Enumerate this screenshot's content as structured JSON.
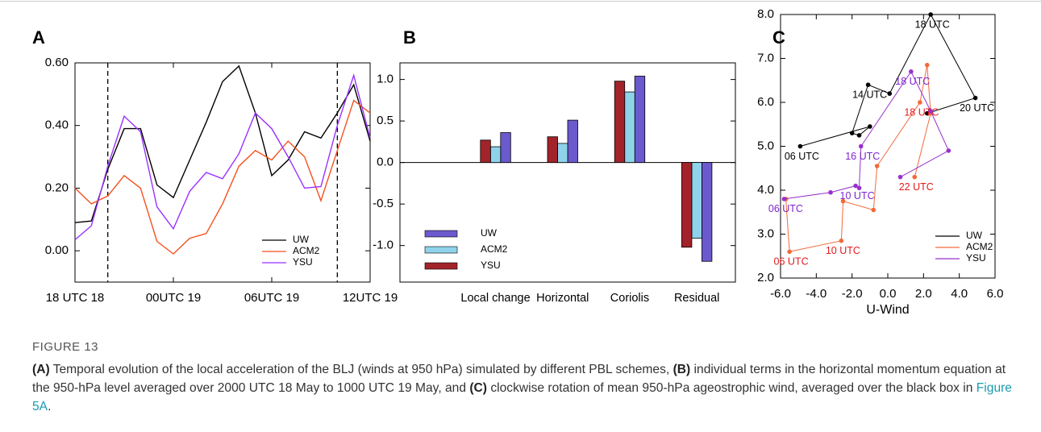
{
  "chart_data": [
    {
      "panel": "A",
      "type": "line",
      "x": [
        0,
        1,
        2,
        3,
        4,
        5,
        6,
        7,
        8,
        9,
        10,
        11,
        12,
        13,
        14,
        15,
        16,
        17,
        18
      ],
      "xlim": [
        0,
        18
      ],
      "xticks": [
        {
          "value": 0,
          "label": "18 UTC 18"
        },
        {
          "value": 6,
          "label": "00UTC 19"
        },
        {
          "value": 12,
          "label": "06UTC 19"
        },
        {
          "value": 18,
          "label": "12UTC 19"
        }
      ],
      "ylim": [
        -0.1,
        0.6
      ],
      "yticks": [
        {
          "value": 0,
          "label": "0.00"
        },
        {
          "value": 0.2,
          "label": "0.20"
        },
        {
          "value": 0.4,
          "label": "0.40"
        },
        {
          "value": 0.6,
          "label": "0.60"
        }
      ],
      "vlines": [
        2,
        16
      ],
      "legend": "lower right",
      "series": [
        {
          "name": "UW",
          "color": "#000000",
          "values": [
            0.09,
            0.095,
            0.26,
            0.39,
            0.39,
            0.21,
            0.17,
            0.29,
            0.41,
            0.54,
            0.59,
            0.44,
            0.24,
            0.29,
            0.38,
            0.36,
            0.44,
            0.53,
            0.35
          ]
        },
        {
          "name": "ACM2",
          "color": "#f4511e",
          "values": [
            0.2,
            0.15,
            0.175,
            0.24,
            0.2,
            0.03,
            -0.01,
            0.04,
            0.055,
            0.15,
            0.27,
            0.32,
            0.29,
            0.35,
            0.3,
            0.16,
            0.32,
            0.48,
            0.44
          ]
        },
        {
          "name": "YSU",
          "color": "#9b30ff",
          "values": [
            0.035,
            0.08,
            0.27,
            0.43,
            0.38,
            0.14,
            0.07,
            0.19,
            0.25,
            0.23,
            0.31,
            0.44,
            0.39,
            0.3,
            0.2,
            0.205,
            0.4,
            0.56,
            0.36
          ]
        }
      ]
    },
    {
      "panel": "B",
      "type": "bar",
      "categories": [
        "Local change",
        "Horizontal",
        "Coriolis",
        "Residual"
      ],
      "ylim": [
        -1.44,
        1.2
      ],
      "yticks": [
        {
          "value": -1,
          "label": "-1.0"
        },
        -0.5,
        {
          "value": 0,
          "label": "0.0"
        },
        0.5,
        {
          "value": 1,
          "label": "1.0"
        }
      ],
      "zero_line": true,
      "legend": "lower left",
      "series": [
        {
          "name": "UW",
          "color": "#6a5acd",
          "values": [
            0.36,
            0.51,
            1.04,
            -1.19
          ]
        },
        {
          "name": "ACM2",
          "color": "#8fd3ea",
          "values": [
            0.19,
            0.23,
            0.85,
            -0.91
          ]
        },
        {
          "name": "YSU",
          "color": "#a2242a",
          "values": [
            0.27,
            0.31,
            0.98,
            -1.02
          ]
        }
      ]
    },
    {
      "panel": "C",
      "type": "line",
      "markers": true,
      "xlabel": "U-Wind",
      "xlim": [
        -6,
        6
      ],
      "xticks": [
        {
          "value": -6,
          "label": "-6.0"
        },
        {
          "value": -4,
          "label": "-4.0"
        },
        {
          "value": -2,
          "label": "-2.0"
        },
        {
          "value": 0,
          "label": "0.0"
        },
        {
          "value": 2,
          "label": "2.0"
        },
        {
          "value": 4,
          "label": "4.0"
        },
        {
          "value": 6,
          "label": "6.0"
        }
      ],
      "ylim": [
        2,
        8
      ],
      "yticks": [
        {
          "value": 2,
          "label": "2.0"
        },
        {
          "value": 3,
          "label": "3.0"
        },
        {
          "value": 4,
          "label": "4.0"
        },
        {
          "value": 5,
          "label": "5.0"
        },
        {
          "value": 6,
          "label": "6.0"
        },
        {
          "value": 7,
          "label": "7.0"
        },
        {
          "value": 8,
          "label": "8.0"
        }
      ],
      "legend": "lower right",
      "series": [
        {
          "name": "UW",
          "color": "#000000",
          "label_color": "#000000",
          "x": [
            -4.9,
            -1.0,
            -1.6,
            -2.0,
            -1.1,
            0.1,
            2.4,
            4.9,
            2.2
          ],
          "values": [
            5.0,
            5.45,
            5.25,
            5.3,
            6.4,
            6.2,
            8.0,
            6.1,
            5.75
          ],
          "point_labels": [
            "06 UTC",
            null,
            null,
            null,
            "14 UTC",
            null,
            "18 UTC",
            "20 UTC",
            null
          ]
        },
        {
          "name": "ACM2",
          "color": "#f26b3a",
          "label_color": "#e41a1c",
          "x": [
            -5.7,
            -5.5,
            -2.6,
            -2.5,
            -0.8,
            -0.6,
            1.8,
            2.2,
            2.4,
            1.5
          ],
          "values": [
            3.8,
            2.6,
            2.85,
            3.75,
            3.55,
            4.55,
            6.0,
            6.85,
            5.75,
            4.3
          ],
          "point_labels": [
            null,
            "06 UTC",
            "10 UTC",
            null,
            null,
            null,
            "18 UTC",
            null,
            null,
            "22 UTC"
          ]
        },
        {
          "name": "YSU",
          "color": "#9932cc",
          "label_color": "#7d26cd",
          "x": [
            -5.8,
            -3.2,
            -1.8,
            -1.6,
            -1.5,
            1.3,
            2.4,
            3.4,
            0.7
          ],
          "values": [
            3.8,
            3.95,
            4.1,
            4.05,
            5.0,
            6.7,
            5.8,
            4.9,
            4.3
          ],
          "point_labels": [
            "06 UTC",
            null,
            "10 UTC",
            null,
            "16 UTC",
            "18 UTC",
            null,
            null,
            null
          ]
        }
      ]
    }
  ],
  "figure": {
    "label": "FIGURE 13",
    "caption": [
      {
        "text": "(A)",
        "bold": true
      },
      {
        "text": " Temporal evolution of the local acceleration of the BLJ (winds at 950 hPa) simulated by different PBL schemes, "
      },
      {
        "text": "(B)",
        "bold": true
      },
      {
        "text": " individual terms in the horizontal momentum equation at the 950-hPa level averaged over 2000 UTC 18 May to 1000 UTC 19 May, and "
      },
      {
        "text": "(C)",
        "bold": true
      },
      {
        "text": " clockwise rotation of mean 950-hPa ageostrophic wind, averaged over the black box in "
      },
      {
        "text": "Figure 5A",
        "link": true
      },
      {
        "text": "."
      }
    ]
  }
}
